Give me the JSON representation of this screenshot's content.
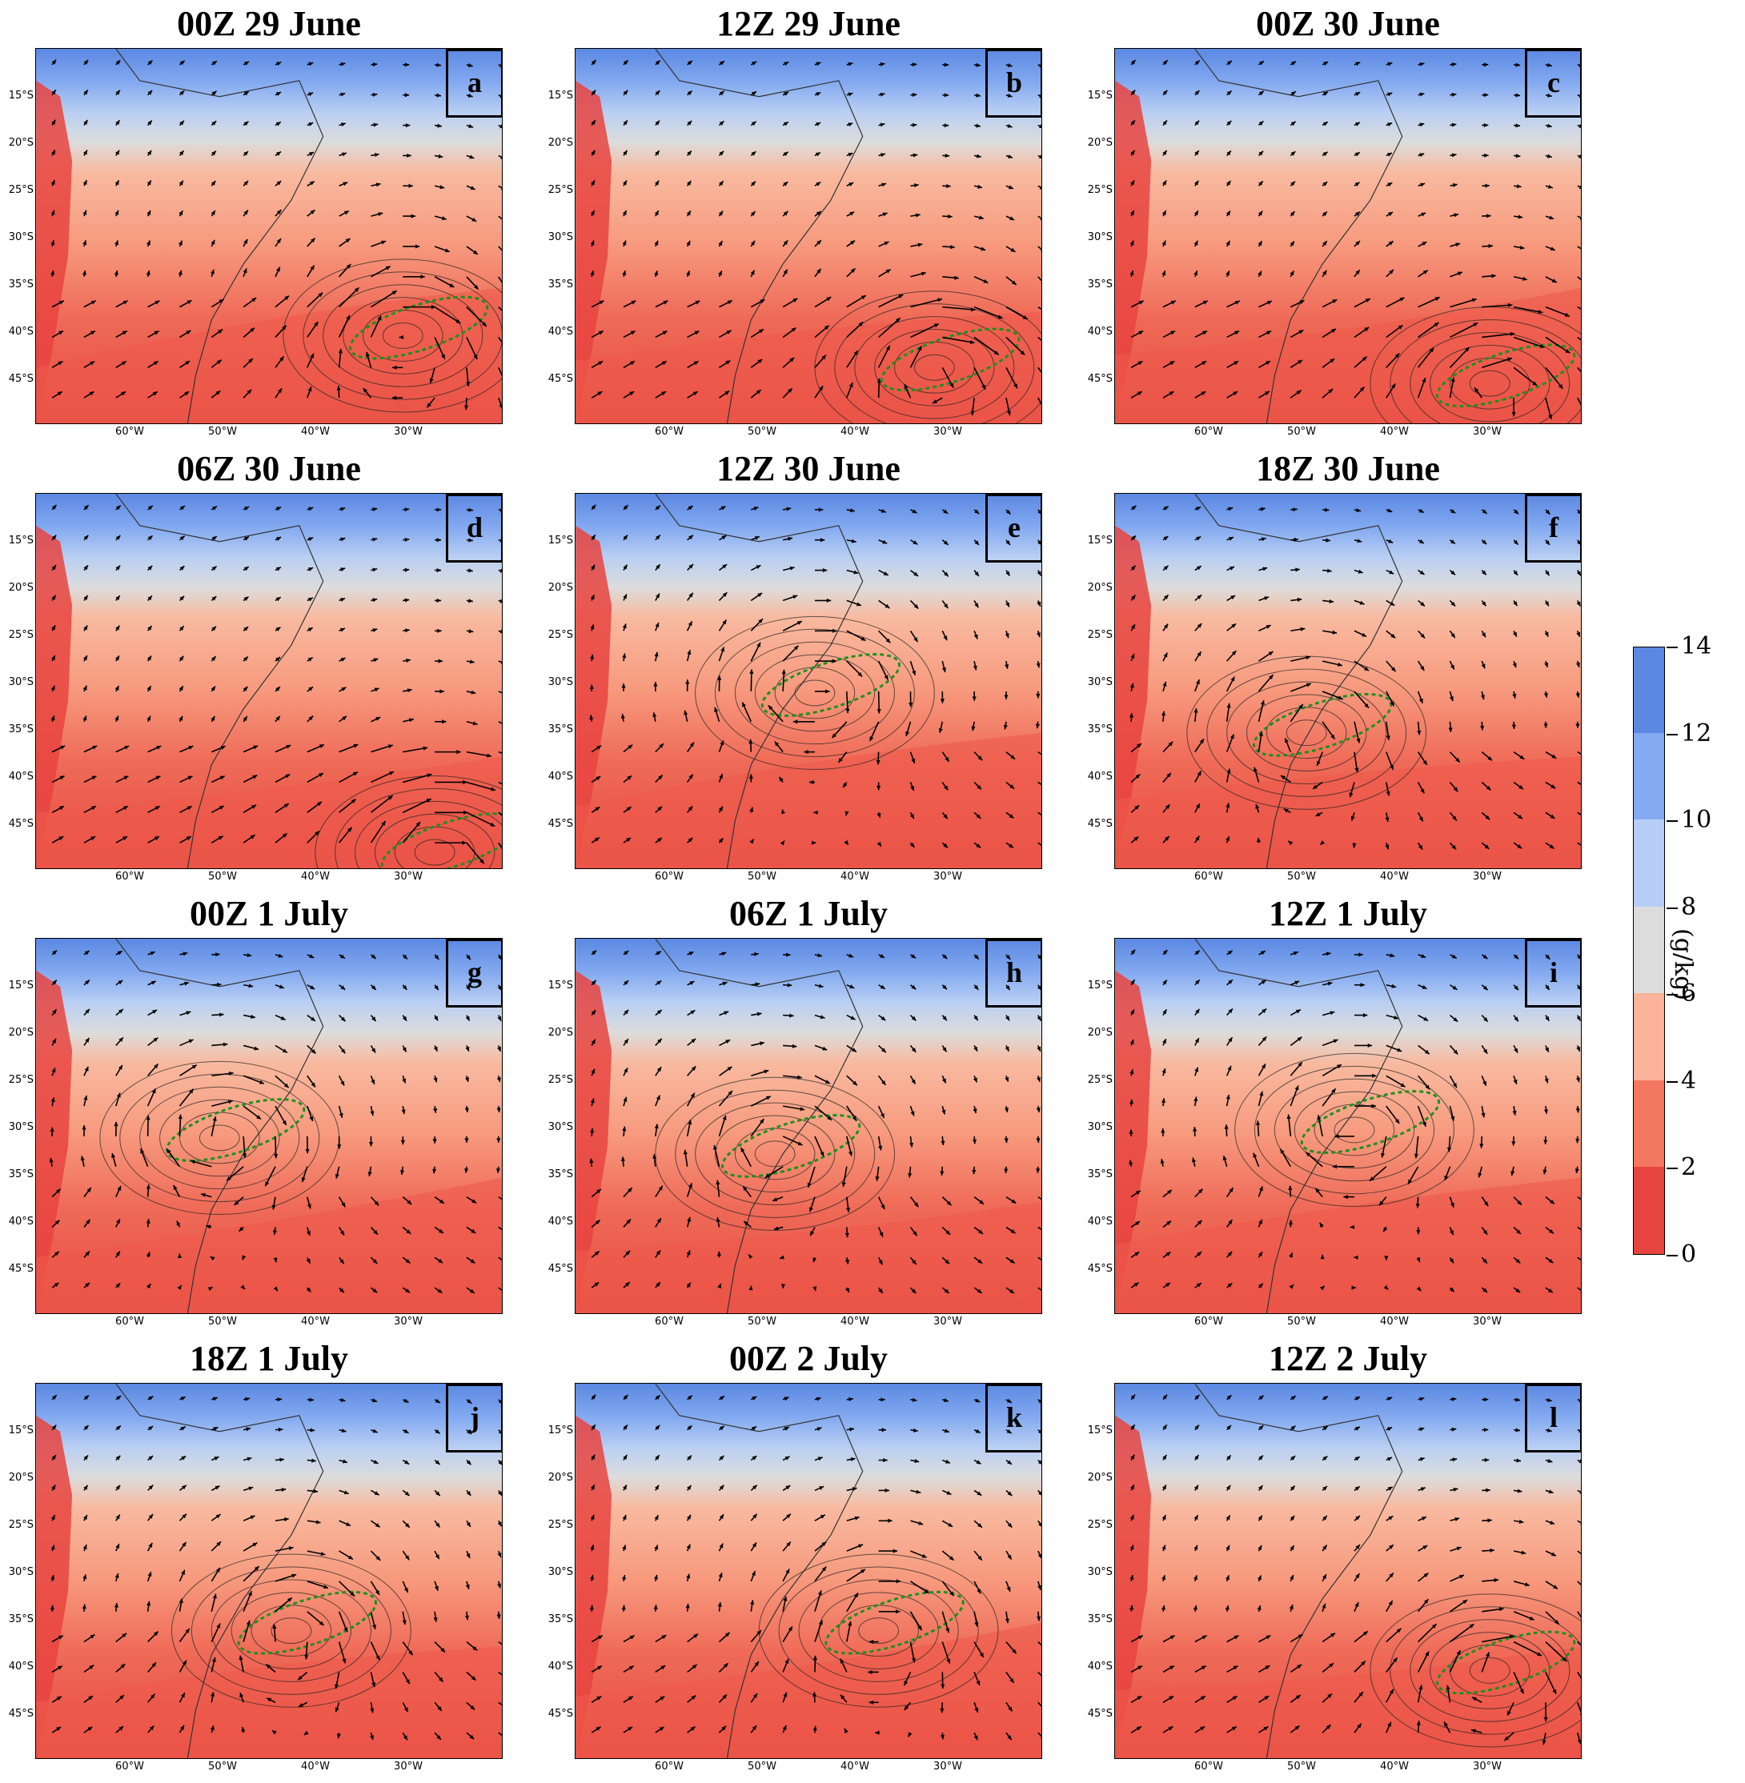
{
  "panels": [
    {
      "title": "00Z 29 June",
      "letter": "a"
    },
    {
      "title": "12Z 29 June",
      "letter": "b"
    },
    {
      "title": "00Z 30 June",
      "letter": "c"
    },
    {
      "title": "06Z 30 June",
      "letter": "d"
    },
    {
      "title": "12Z 30 June",
      "letter": "e"
    },
    {
      "title": "18Z 30 June",
      "letter": "f"
    },
    {
      "title": "00Z 1 July",
      "letter": "g"
    },
    {
      "title": "06Z 1 July",
      "letter": "h"
    },
    {
      "title": "12Z 1 July",
      "letter": "i"
    },
    {
      "title": "18Z 1 July",
      "letter": "j"
    },
    {
      "title": "00Z 2 July",
      "letter": "k"
    },
    {
      "title": "12Z 2 July",
      "letter": "l"
    }
  ],
  "lat_labels": [
    "15°S",
    "20°S",
    "25°S",
    "30°S",
    "35°S",
    "40°S",
    "45°S"
  ],
  "lon_labels": [
    "60°W",
    "50°W",
    "40°W",
    "30°W"
  ],
  "colorbar": {
    "unit": "(g/kg)",
    "ticks": [
      "0",
      "2",
      "4",
      "6",
      "8",
      "10",
      "12",
      "14"
    ],
    "colors": [
      "#e8443f",
      "#f4775f",
      "#fbb39a",
      "#dcdcdc",
      "#b6cdf6",
      "#84abf1",
      "#5a88e3"
    ]
  },
  "colors": {
    "dry": "#e8443f",
    "moist": "#5a88e3",
    "precip_contour": "#1e8f1e",
    "pressure_contour": "#222222"
  }
}
